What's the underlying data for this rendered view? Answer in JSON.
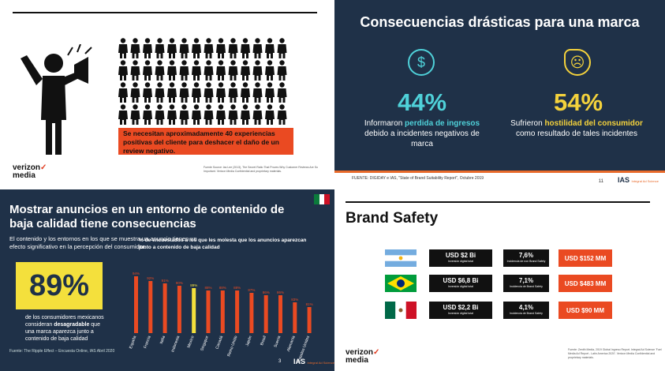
{
  "q1": {
    "callout": "Se necesitan aproximadamente 40 experiencias positivas del cliente para deshacer el daño de un review negativo.",
    "logo_line1": "verizon",
    "logo_tick": "✓",
    "logo_line2": "media",
    "source": "Fuente Source: las Lee (2013), The Secret Ratio That Proves Why Customer Reviews Are So Important. Verizon Media Confidential and proprietary materials."
  },
  "q2": {
    "title": "Consecuencias drásticas para una marca",
    "left_stat": "44%",
    "left_text_prefix": "Informaron ",
    "left_text_highlight": "perdida de ingresos",
    "left_text_rest": "debido a incidentes negativos de marca",
    "right_stat": "54%",
    "right_text_prefix": "Sufrieron ",
    "right_text_highlight": "hostilidad del consumidor",
    "right_text_rest": "como resultado de tales incidentes",
    "footer": "FUENTE: DIGIDAY e IAS, \"State of Brand Suitability Report\", Octubre 2019",
    "page": "11",
    "ias": "IAS",
    "ias_small": "Integral Ad Science",
    "accent_teal": "#4fd1d9",
    "accent_yellow": "#f4d23c"
  },
  "q3": {
    "title": "Mostrar anuncios en un entorno de contenido de baja calidad tiene consecuencias",
    "subtitle": "El contenido y los entornos en los que se muestra un anuncio tienen un efecto significativo en la percepción del consumidor.",
    "big_stat": "89%",
    "big_text_prefix": "de los consumidores mexicanos consideran ",
    "big_text_bold": "desagradable",
    "big_text_rest": " que una marca aparezca junto a contenido de baja calidad",
    "chart_title": "% de encuestados a los que les molesta que los anuncios aparezcan junto a contenido de baja calidad",
    "source": "Fuente: The Ripple Effect – Encuesta Online, IAS Abril 2020",
    "page": "3",
    "ias": "IAS",
    "ias_small": "Integral Ad Science"
  },
  "chart_data": {
    "type": "bar",
    "title": "% de encuestados a los que les molesta que los anuncios aparezcan junto a contenido de baja calidad",
    "categories": [
      "España",
      "Francia",
      "Italia",
      "Indonesia",
      "Mexico",
      "Singapur",
      "Canadá",
      "Reino Unido",
      "Japón",
      "Brasil",
      "Suecia",
      "Alemania",
      "Estados Unidos"
    ],
    "values": [
      94,
      92,
      91,
      90,
      89,
      88,
      88,
      88,
      87,
      86,
      86,
      83,
      81
    ],
    "labels": [
      "94%",
      "92%",
      "91%",
      "90%",
      "89%",
      "88%",
      "88%",
      "88%",
      "87%",
      "86%",
      "86%",
      "83%",
      "81%"
    ],
    "highlight_index": 4,
    "bar_color": "#ea4a22",
    "highlight_color": "#f4e03c",
    "ylim": [
      0,
      100
    ]
  },
  "q4": {
    "title": "Brand Safety",
    "rows": [
      {
        "country": "argentina",
        "investment": "USD $2 Bi",
        "investment_label": "Inversión digital total",
        "pct": "7,6%",
        "pct_label": "Incidencia de non Brand Safety",
        "cost": "USD $152 MM"
      },
      {
        "country": "brazil",
        "investment": "USD $6,8 Bi",
        "investment_label": "Inversión digital total",
        "pct": "7,1%",
        "pct_label": "Incidencia de Brand Safety",
        "cost": "USD $483 MM"
      },
      {
        "country": "mexico",
        "investment": "USD $2,2 Bi",
        "investment_label": "Inversión digital total",
        "pct": "4,1%",
        "pct_label": "Incidencia de Brand Safety",
        "cost": "USD $90 MM"
      }
    ],
    "logo_line1": "verizon",
    "logo_tick": "✓",
    "logo_line2": "media",
    "source": "Fuente: Zenith Media, 2019 Global Ingreso Report. Integral Ad Science 'Fuel Media Ad Report - Latin America 2020'. Verizon Media Confidential and proprietary materials."
  }
}
